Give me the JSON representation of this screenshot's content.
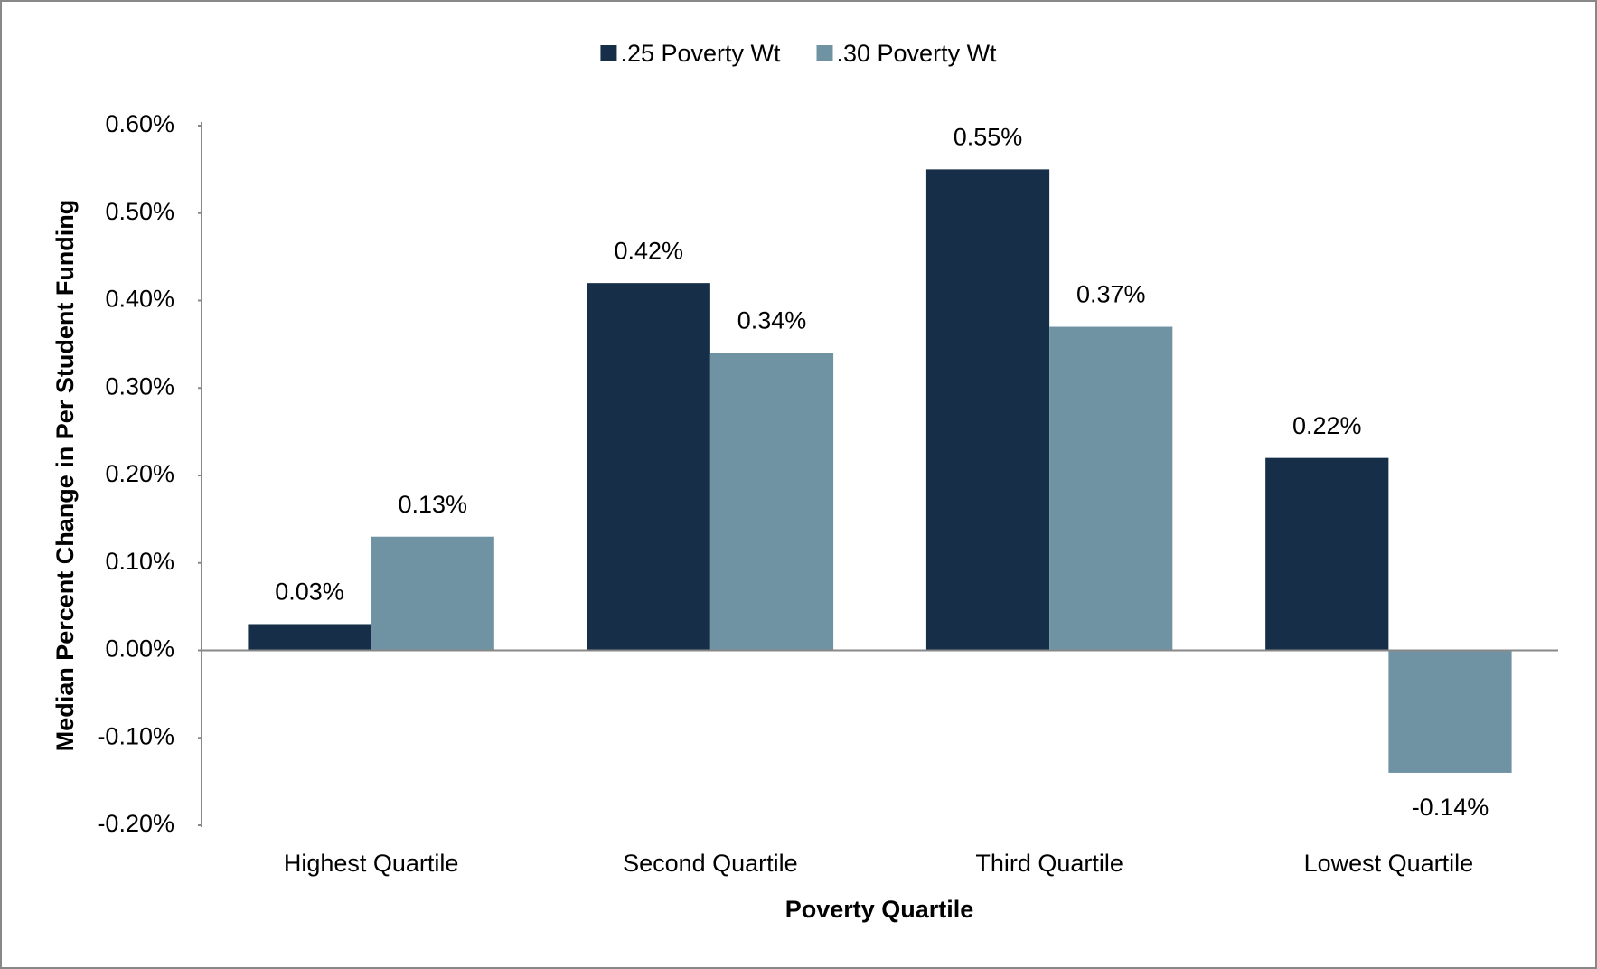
{
  "chart_data": {
    "type": "bar",
    "x_label": "Poverty Quartile",
    "y_label": "Median Percent Change in Per Student Funding",
    "categories": [
      "Highest Quartile",
      "Second Quartile",
      "Third Quartile",
      "Lowest Quartile"
    ],
    "series": [
      {
        "name": ".25 Poverty Wt",
        "color": "#172e48",
        "values": [
          0.03,
          0.42,
          0.55,
          0.22
        ],
        "value_labels": [
          "0.03%",
          "0.42%",
          "0.55%",
          "0.22%"
        ]
      },
      {
        "name": ".30 Poverty Wt",
        "color": "#7093a4",
        "values": [
          0.13,
          0.34,
          0.37,
          -0.14
        ],
        "value_labels": [
          "0.13%",
          "0.34%",
          "0.37%",
          "-0.14%"
        ]
      }
    ],
    "ylim": [
      -0.2,
      0.6
    ],
    "yticks": [
      {
        "value": -0.2,
        "label": "-0.20%"
      },
      {
        "value": -0.1,
        "label": "-0.10%"
      },
      {
        "value": 0,
        "label": "0.00%"
      },
      {
        "value": 0.1,
        "label": "0.10%"
      },
      {
        "value": 0.2,
        "label": "0.20%"
      },
      {
        "value": 0.3,
        "label": "0.30%"
      },
      {
        "value": 0.4,
        "label": "0.40%"
      },
      {
        "value": 0.5,
        "label": "0.50%"
      },
      {
        "value": 0.6,
        "label": "0.60%"
      }
    ],
    "legend": "top",
    "grid": false
  }
}
